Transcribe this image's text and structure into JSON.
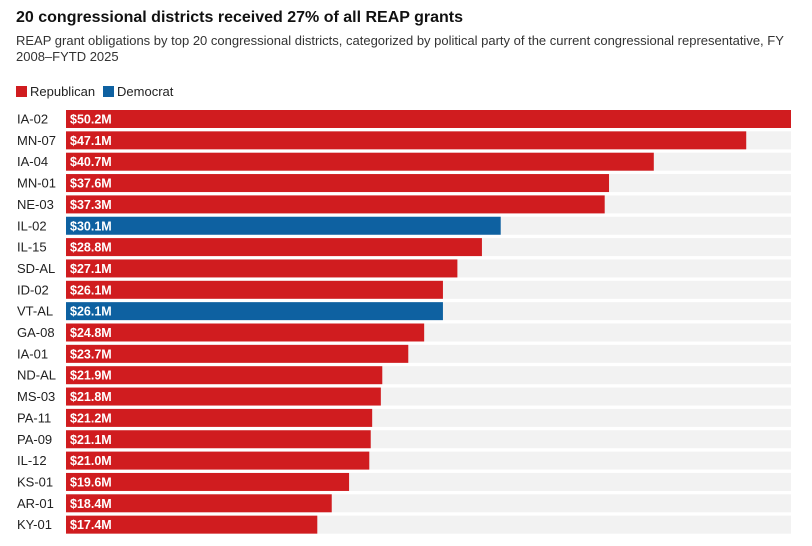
{
  "chart_data": {
    "type": "bar",
    "orientation": "horizontal",
    "title": "20 congressional districts received 27% of all REAP grants",
    "subtitle": "REAP grant obligations by top 20 congressional districts, categorized by political party of the current congressional representative, FY 2008–FYTD 2025",
    "legend": [
      {
        "name": "Republican",
        "color": "#d01c1f"
      },
      {
        "name": "Democrat",
        "color": "#0e61a1"
      }
    ],
    "legend_position": "top-left",
    "track_color": "#f2f2f2",
    "xlim": [
      0,
      50.2
    ],
    "categories": [
      "IA-02",
      "MN-07",
      "IA-04",
      "MN-01",
      "NE-03",
      "IL-02",
      "IL-15",
      "SD-AL",
      "ID-02",
      "VT-AL",
      "GA-08",
      "IA-01",
      "ND-AL",
      "MS-03",
      "PA-11",
      "PA-09",
      "IL-12",
      "KS-01",
      "AR-01",
      "KY-01"
    ],
    "values": [
      50.2,
      47.1,
      40.7,
      37.6,
      37.3,
      30.1,
      28.8,
      27.1,
      26.1,
      26.1,
      24.8,
      23.7,
      21.9,
      21.8,
      21.2,
      21.1,
      21.0,
      19.6,
      18.4,
      17.4
    ],
    "value_labels": [
      "$50.2M",
      "$47.1M",
      "$40.7M",
      "$37.6M",
      "$37.3M",
      "$30.1M",
      "$28.8M",
      "$27.1M",
      "$26.1M",
      "$26.1M",
      "$24.8M",
      "$23.7M",
      "$21.9M",
      "$21.8M",
      "$21.2M",
      "$21.1M",
      "$21.0M",
      "$19.6M",
      "$18.4M",
      "$17.4M"
    ],
    "party": [
      "Republican",
      "Republican",
      "Republican",
      "Republican",
      "Republican",
      "Democrat",
      "Republican",
      "Republican",
      "Republican",
      "Democrat",
      "Republican",
      "Republican",
      "Republican",
      "Republican",
      "Republican",
      "Republican",
      "Republican",
      "Republican",
      "Republican",
      "Republican"
    ]
  }
}
